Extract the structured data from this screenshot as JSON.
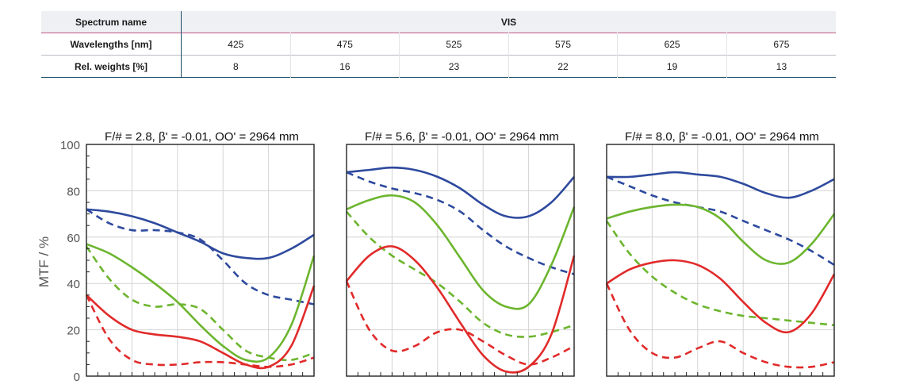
{
  "table": {
    "header_label": "Spectrum name",
    "spectrum": "VIS",
    "rows": [
      {
        "label": "Wavelengths [nm]",
        "values": [
          "425",
          "475",
          "525",
          "575",
          "625",
          "675"
        ]
      },
      {
        "label": "Rel. weights [%]",
        "values": [
          "8",
          "16",
          "23",
          "22",
          "19",
          "13"
        ]
      }
    ]
  },
  "chart_data": [
    {
      "type": "line",
      "title": "F/# = 2.8, β' = -0.01, OO' = 2964 mm",
      "ylabel": "MTF / %",
      "ylim": [
        0,
        100
      ],
      "yticks": [
        "0",
        "20",
        "40",
        "60",
        "80",
        "100"
      ],
      "grid": true,
      "series": [
        {
          "color": "#2e4a9e",
          "dash": false,
          "x": [
            0,
            0.1,
            0.2,
            0.3,
            0.4,
            0.5,
            0.6,
            0.7,
            0.8,
            0.9,
            1.0
          ],
          "values": [
            72,
            71,
            69,
            66,
            62,
            58,
            53,
            51,
            51,
            55,
            61
          ]
        },
        {
          "color": "#2e4a9e",
          "dash": true,
          "x": [
            0,
            0.1,
            0.2,
            0.3,
            0.4,
            0.5,
            0.6,
            0.7,
            0.8,
            0.9,
            1.0
          ],
          "values": [
            72,
            66,
            63,
            63,
            62,
            59,
            50,
            40,
            35,
            33,
            31
          ]
        },
        {
          "color": "#6cb52e",
          "dash": false,
          "x": [
            0,
            0.1,
            0.2,
            0.3,
            0.4,
            0.5,
            0.6,
            0.7,
            0.8,
            0.9,
            1.0
          ],
          "values": [
            57,
            53,
            47,
            40,
            32,
            22,
            13,
            7,
            8,
            22,
            52
          ]
        },
        {
          "color": "#6cb52e",
          "dash": true,
          "x": [
            0,
            0.1,
            0.2,
            0.3,
            0.4,
            0.5,
            0.6,
            0.7,
            0.8,
            0.9,
            1.0
          ],
          "values": [
            56,
            42,
            33,
            30,
            31,
            29,
            20,
            11,
            8,
            7,
            10
          ]
        },
        {
          "color": "#e12a2a",
          "dash": false,
          "x": [
            0,
            0.1,
            0.2,
            0.3,
            0.4,
            0.5,
            0.6,
            0.7,
            0.8,
            0.9,
            1.0
          ],
          "values": [
            35,
            26,
            20,
            18,
            17,
            15,
            10,
            5,
            4,
            13,
            39
          ]
        },
        {
          "color": "#e12a2a",
          "dash": true,
          "x": [
            0,
            0.1,
            0.2,
            0.3,
            0.4,
            0.5,
            0.6,
            0.7,
            0.8,
            0.9,
            1.0
          ],
          "values": [
            35,
            16,
            7,
            5,
            5,
            6,
            6,
            5,
            4,
            5,
            8
          ]
        }
      ]
    },
    {
      "type": "line",
      "title": "F/# = 5.6, β' = -0.01, OO' = 2964 mm",
      "ylim": [
        0,
        100
      ],
      "grid": true,
      "series": [
        {
          "color": "#2e4a9e",
          "dash": false,
          "x": [
            0,
            0.1,
            0.2,
            0.3,
            0.4,
            0.5,
            0.6,
            0.7,
            0.8,
            0.9,
            1.0
          ],
          "values": [
            88,
            89,
            90,
            89,
            86,
            81,
            74,
            69,
            69,
            75,
            86
          ]
        },
        {
          "color": "#2e4a9e",
          "dash": true,
          "x": [
            0,
            0.1,
            0.2,
            0.3,
            0.4,
            0.5,
            0.6,
            0.7,
            0.8,
            0.9,
            1.0
          ],
          "values": [
            88,
            84,
            81,
            79,
            76,
            71,
            63,
            56,
            51,
            47,
            44
          ]
        },
        {
          "color": "#6cb52e",
          "dash": false,
          "x": [
            0,
            0.1,
            0.2,
            0.3,
            0.4,
            0.5,
            0.6,
            0.7,
            0.8,
            0.9,
            1.0
          ],
          "values": [
            72,
            76,
            78,
            75,
            65,
            51,
            37,
            30,
            31,
            48,
            73
          ]
        },
        {
          "color": "#6cb52e",
          "dash": true,
          "x": [
            0,
            0.1,
            0.2,
            0.3,
            0.4,
            0.5,
            0.6,
            0.7,
            0.8,
            0.9,
            1.0
          ],
          "values": [
            71,
            60,
            52,
            46,
            40,
            32,
            23,
            18,
            17,
            19,
            22
          ]
        },
        {
          "color": "#e12a2a",
          "dash": false,
          "x": [
            0,
            0.1,
            0.2,
            0.3,
            0.4,
            0.5,
            0.6,
            0.7,
            0.8,
            0.9,
            1.0
          ],
          "values": [
            41,
            52,
            56,
            50,
            38,
            23,
            9,
            2,
            4,
            18,
            52
          ]
        },
        {
          "color": "#e12a2a",
          "dash": true,
          "x": [
            0,
            0.1,
            0.2,
            0.3,
            0.4,
            0.5,
            0.6,
            0.7,
            0.8,
            0.9,
            1.0
          ],
          "values": [
            41,
            20,
            11,
            13,
            19,
            20,
            15,
            9,
            5,
            8,
            13
          ]
        }
      ]
    },
    {
      "type": "line",
      "title": "F/# = 8.0, β' = -0.01, OO' = 2964 mm",
      "ylim": [
        0,
        100
      ],
      "grid": true,
      "series": [
        {
          "color": "#2e4a9e",
          "dash": false,
          "x": [
            0,
            0.1,
            0.2,
            0.3,
            0.4,
            0.5,
            0.6,
            0.7,
            0.8,
            0.9,
            1.0
          ],
          "values": [
            86,
            86,
            87,
            88,
            87,
            86,
            83,
            79,
            77,
            80,
            85
          ]
        },
        {
          "color": "#2e4a9e",
          "dash": true,
          "x": [
            0,
            0.1,
            0.2,
            0.3,
            0.4,
            0.5,
            0.6,
            0.7,
            0.8,
            0.9,
            1.0
          ],
          "values": [
            86,
            82,
            78,
            75,
            73,
            71,
            67,
            63,
            59,
            54,
            48
          ]
        },
        {
          "color": "#6cb52e",
          "dash": false,
          "x": [
            0,
            0.1,
            0.2,
            0.3,
            0.4,
            0.5,
            0.6,
            0.7,
            0.8,
            0.9,
            1.0
          ],
          "values": [
            68,
            71,
            73,
            74,
            73,
            68,
            58,
            50,
            49,
            57,
            70
          ]
        },
        {
          "color": "#6cb52e",
          "dash": true,
          "x": [
            0,
            0.1,
            0.2,
            0.3,
            0.4,
            0.5,
            0.6,
            0.7,
            0.8,
            0.9,
            1.0
          ],
          "values": [
            67,
            53,
            43,
            36,
            31,
            28,
            26,
            25,
            24,
            23,
            22
          ]
        },
        {
          "color": "#e12a2a",
          "dash": false,
          "x": [
            0,
            0.1,
            0.2,
            0.3,
            0.4,
            0.5,
            0.6,
            0.7,
            0.8,
            0.9,
            1.0
          ],
          "values": [
            40,
            46,
            49,
            50,
            48,
            42,
            32,
            23,
            19,
            27,
            44
          ]
        },
        {
          "color": "#e12a2a",
          "dash": true,
          "x": [
            0,
            0.1,
            0.2,
            0.3,
            0.4,
            0.5,
            0.6,
            0.7,
            0.8,
            0.9,
            1.0
          ],
          "values": [
            40,
            20,
            10,
            8,
            12,
            15,
            10,
            6,
            4,
            4,
            6
          ]
        }
      ]
    }
  ]
}
